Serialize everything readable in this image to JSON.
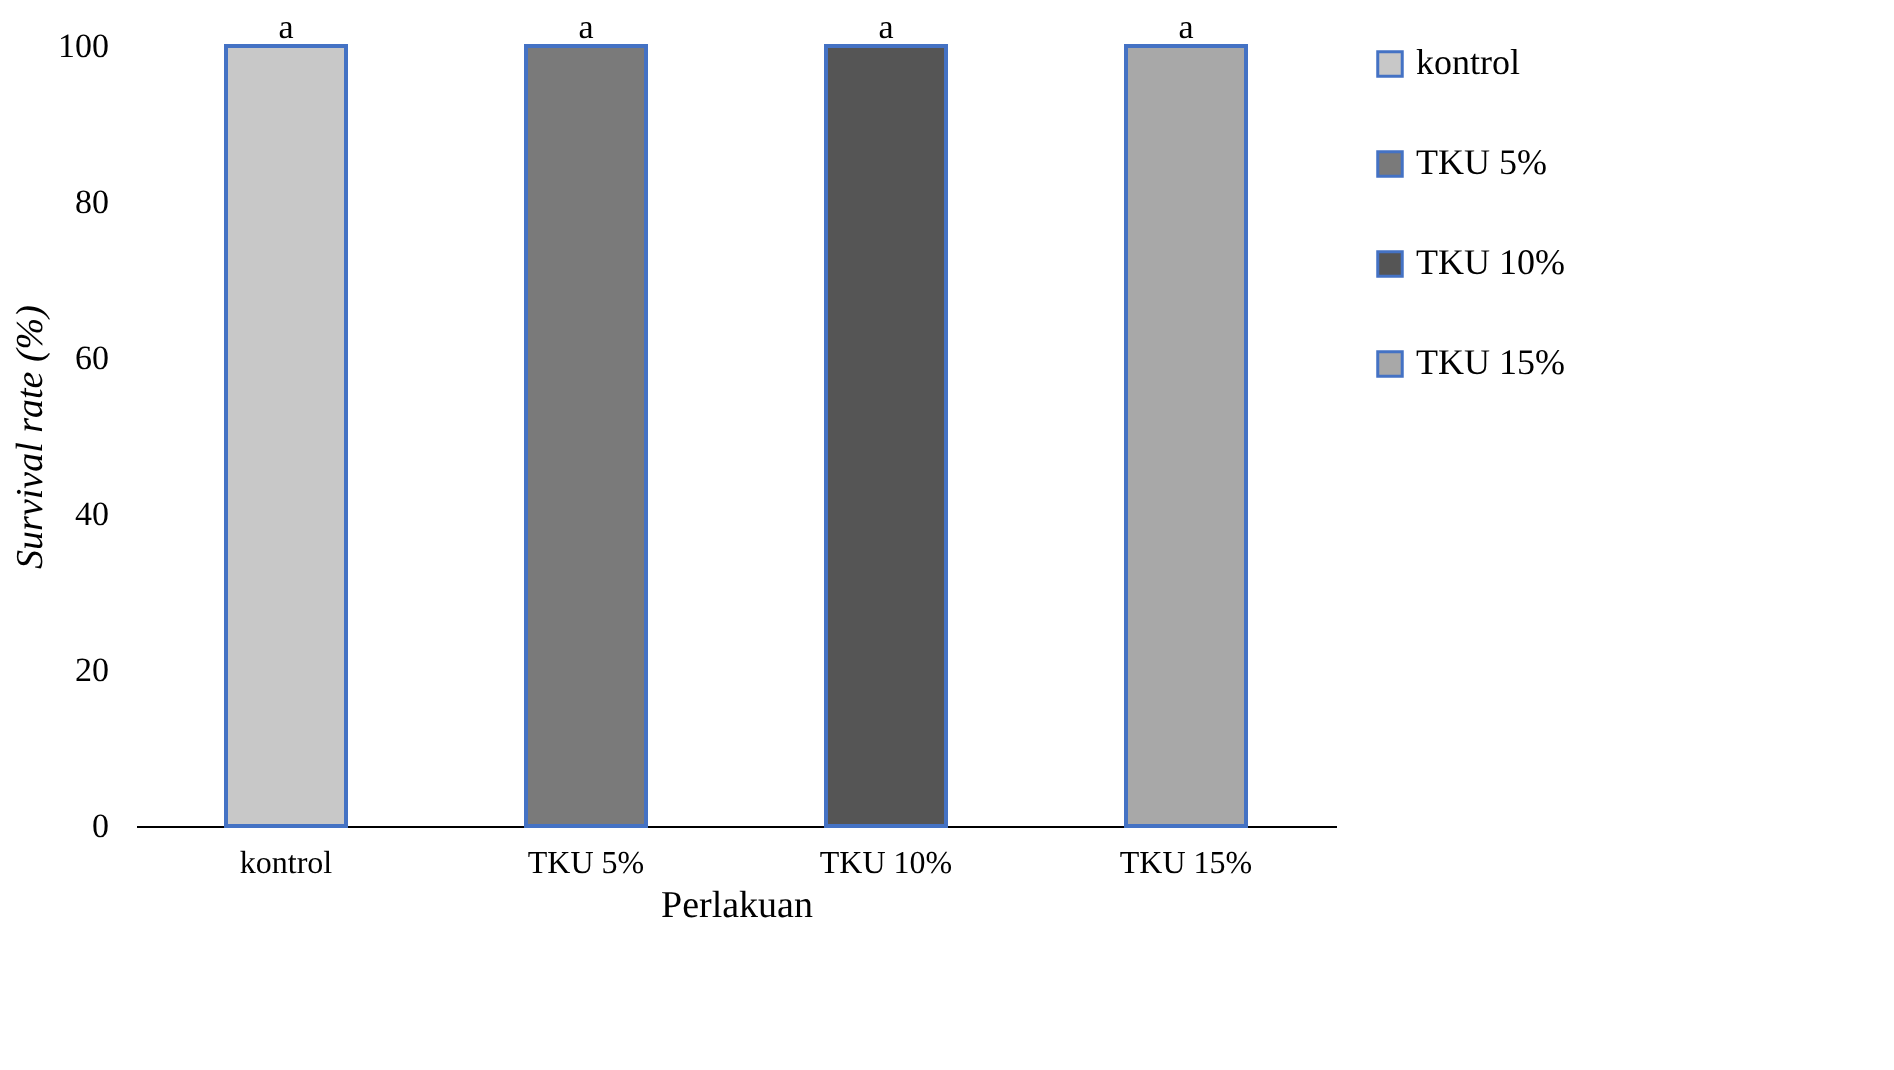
{
  "chart_data": {
    "type": "bar",
    "xlabel": "Perlakuan",
    "ylabel": "Survival rate (%)",
    "categories": [
      "kontrol",
      "TKU 5%",
      "TKU 10%",
      "TKU 15%"
    ],
    "series": [
      {
        "name": "kontrol",
        "color": "#c8c8c8",
        "values": [
          100,
          null,
          null,
          null
        ]
      },
      {
        "name": "TKU 5%",
        "color": "#7a7a7a",
        "values": [
          null,
          100,
          null,
          null
        ]
      },
      {
        "name": "TKU 10%",
        "color": "#555555",
        "values": [
          null,
          null,
          100,
          null
        ]
      },
      {
        "name": "TKU 15%",
        "color": "#a8a8a8",
        "values": [
          null,
          null,
          null,
          100
        ]
      }
    ],
    "ylim": [
      0,
      100
    ],
    "yticks": [
      0,
      20,
      40,
      60,
      80,
      100
    ],
    "grid": false,
    "legend": "right",
    "annotations": [
      {
        "text": "a",
        "x": "kontrol",
        "y": 100
      },
      {
        "text": "a",
        "x": "TKU 5%",
        "y": 100
      },
      {
        "text": "a",
        "x": "TKU 10%",
        "y": 100
      },
      {
        "text": "a",
        "x": "TKU 15%",
        "y": 100
      }
    ]
  }
}
